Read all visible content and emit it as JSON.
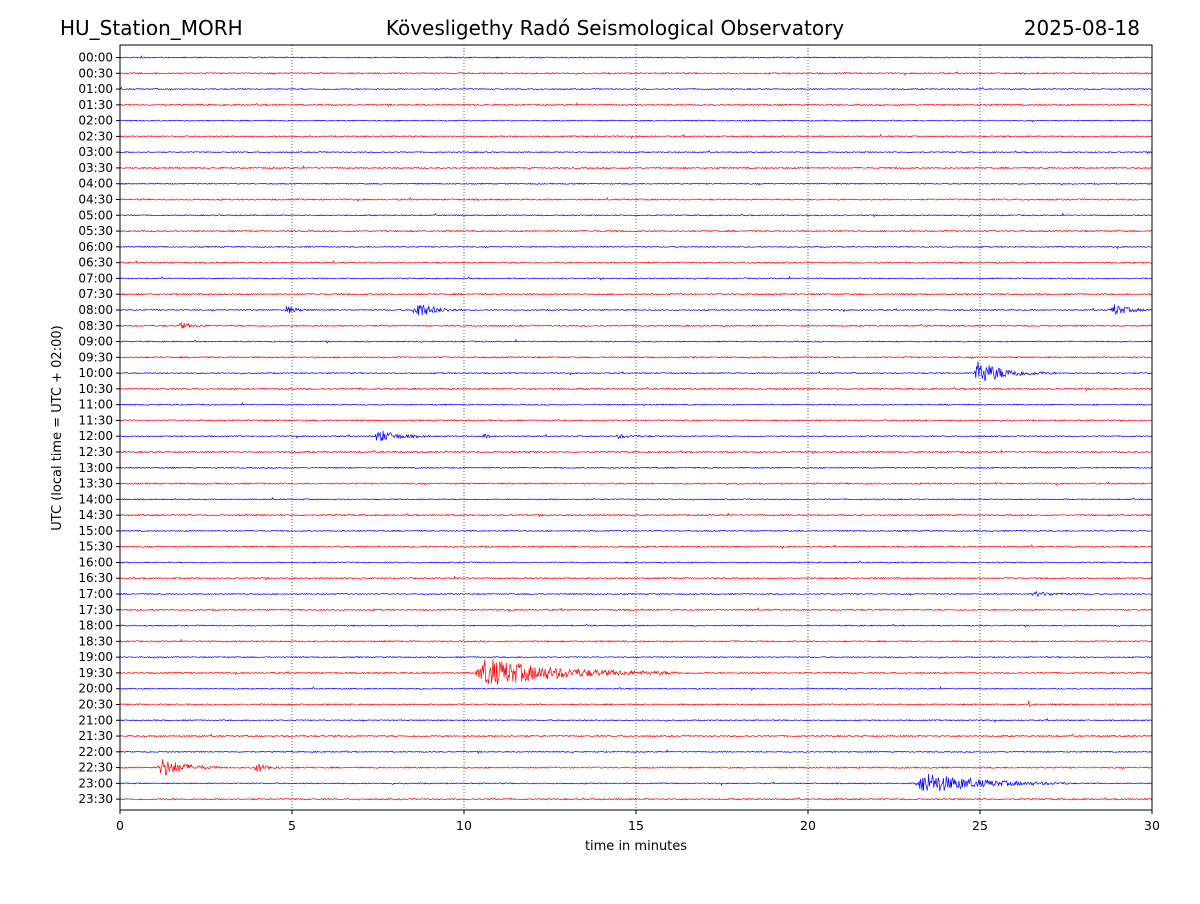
{
  "header": {
    "station": "HU_Station_MORH",
    "observatory": "Kövesligethy Radó Seismological Observatory",
    "date": "2025-08-18"
  },
  "chart_data": {
    "type": "line",
    "title": "Kövesligethy Radó Seismological Observatory",
    "xlabel": "time in minutes",
    "ylabel": "UTC (local time = UTC + 02:00)",
    "xlim": [
      0,
      30
    ],
    "x_ticks": [
      "0",
      "5",
      "10",
      "15",
      "20",
      "25",
      "30"
    ],
    "y_ticks": [
      "00:00",
      "00:30",
      "01:00",
      "01:30",
      "02:00",
      "02:30",
      "03:00",
      "03:30",
      "04:00",
      "04:30",
      "05:00",
      "05:30",
      "06:00",
      "06:30",
      "07:00",
      "07:30",
      "08:00",
      "08:30",
      "09:00",
      "09:30",
      "10:00",
      "10:30",
      "11:00",
      "11:30",
      "12:00",
      "12:30",
      "13:00",
      "13:30",
      "14:00",
      "14:30",
      "15:00",
      "15:30",
      "16:00",
      "16:30",
      "17:00",
      "17:30",
      "18:00",
      "18:30",
      "19:00",
      "19:30",
      "20:00",
      "20:30",
      "21:00",
      "21:30",
      "22:00",
      "22:30",
      "23:00",
      "23:30"
    ],
    "grid": "vertical dotted lines at each x tick",
    "trace_colors": [
      "#0000ff",
      "#ff0000"
    ],
    "legend": "none",
    "events": [
      {
        "trace": "08:00",
        "start_min": 4.8,
        "duration_min": 0.8,
        "amplitude": 0.45
      },
      {
        "trace": "08:00",
        "start_min": 8.5,
        "duration_min": 1.5,
        "amplitude": 1.0
      },
      {
        "trace": "08:00",
        "start_min": 28.8,
        "duration_min": 1.2,
        "amplitude": 0.7
      },
      {
        "trace": "08:30",
        "start_min": 1.7,
        "duration_min": 0.9,
        "amplitude": 0.35
      },
      {
        "trace": "10:00",
        "start_min": 24.8,
        "duration_min": 2.4,
        "amplitude": 1.3
      },
      {
        "trace": "12:00",
        "start_min": 7.4,
        "duration_min": 1.6,
        "amplitude": 0.75
      },
      {
        "trace": "12:00",
        "start_min": 10.5,
        "duration_min": 0.5,
        "amplitude": 0.25
      },
      {
        "trace": "12:00",
        "start_min": 14.4,
        "duration_min": 1.4,
        "amplitude": 0.2
      },
      {
        "trace": "17:00",
        "start_min": 26.5,
        "duration_min": 1.8,
        "amplitude": 0.25
      },
      {
        "trace": "19:30",
        "start_min": 10.3,
        "duration_min": 6.0,
        "amplitude": 1.6
      },
      {
        "trace": "20:30",
        "start_min": 26.4,
        "duration_min": 0.3,
        "amplitude": 0.35
      },
      {
        "trace": "22:30",
        "start_min": 1.1,
        "duration_min": 1.8,
        "amplitude": 1.1
      },
      {
        "trace": "22:30",
        "start_min": 3.9,
        "duration_min": 0.8,
        "amplitude": 0.65
      },
      {
        "trace": "23:00",
        "start_min": 23.1,
        "duration_min": 4.5,
        "amplitude": 1.2
      }
    ]
  }
}
